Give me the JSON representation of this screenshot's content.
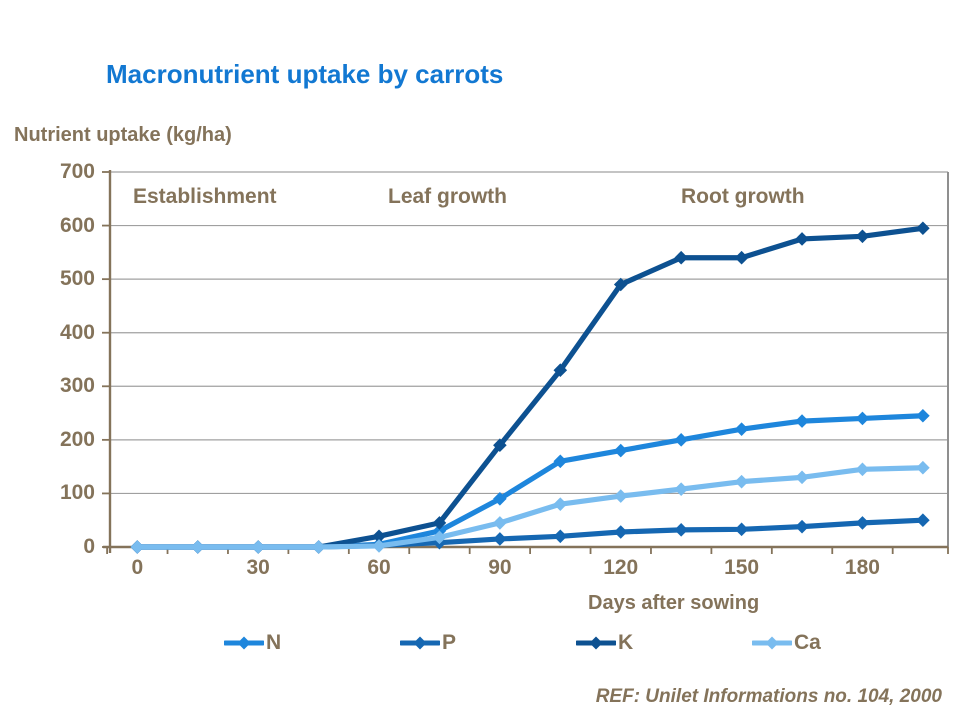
{
  "colors": {
    "title_blue": "#1278D2",
    "text_brown": "#84735A",
    "gridline_gray": "#A0A0A0",
    "plot_border_gray": "#8F8F8F"
  },
  "chart_data": {
    "type": "line",
    "title": "Macronutrient uptake by carrots",
    "ylabel": "Nutrient uptake (kg/ha)",
    "xlabel": "Days after sowing",
    "ref_text": "REF: Unilet Informations no. 104, 2000",
    "phase_labels": [
      "Establishment",
      "Leaf growth",
      "Root growth"
    ],
    "x": [
      0,
      15,
      30,
      45,
      60,
      75,
      90,
      105,
      120,
      135,
      150,
      165,
      180,
      195
    ],
    "series": [
      {
        "name": "N",
        "color": "#1E86DC",
        "values": [
          0,
          0,
          0,
          0,
          5,
          30,
          90,
          160,
          180,
          200,
          220,
          235,
          240,
          245
        ]
      },
      {
        "name": "P",
        "color": "#1567B2",
        "values": [
          0,
          0,
          0,
          0,
          3,
          8,
          15,
          20,
          28,
          32,
          33,
          38,
          45,
          50
        ]
      },
      {
        "name": "K",
        "color": "#0D5191",
        "values": [
          0,
          0,
          0,
          0,
          20,
          45,
          190,
          330,
          490,
          540,
          540,
          575,
          580,
          595
        ]
      },
      {
        "name": "Ca",
        "color": "#79BCEF",
        "values": [
          0,
          0,
          0,
          0,
          2,
          18,
          45,
          80,
          95,
          108,
          122,
          130,
          145,
          148
        ]
      }
    ],
    "draw_order": [
      "N",
      "P",
      "K",
      "Ca"
    ],
    "legend_order": [
      "N",
      "P",
      "K",
      "Ca"
    ],
    "legend_position": "bottom",
    "y_ticks": [
      0,
      100,
      200,
      300,
      400,
      500,
      600,
      700
    ],
    "x_tick_labels": [
      0,
      30,
      60,
      90,
      120,
      150,
      180
    ],
    "ylim": [
      0,
      700
    ],
    "xlim": [
      0,
      195
    ],
    "grid": "horizontal"
  }
}
